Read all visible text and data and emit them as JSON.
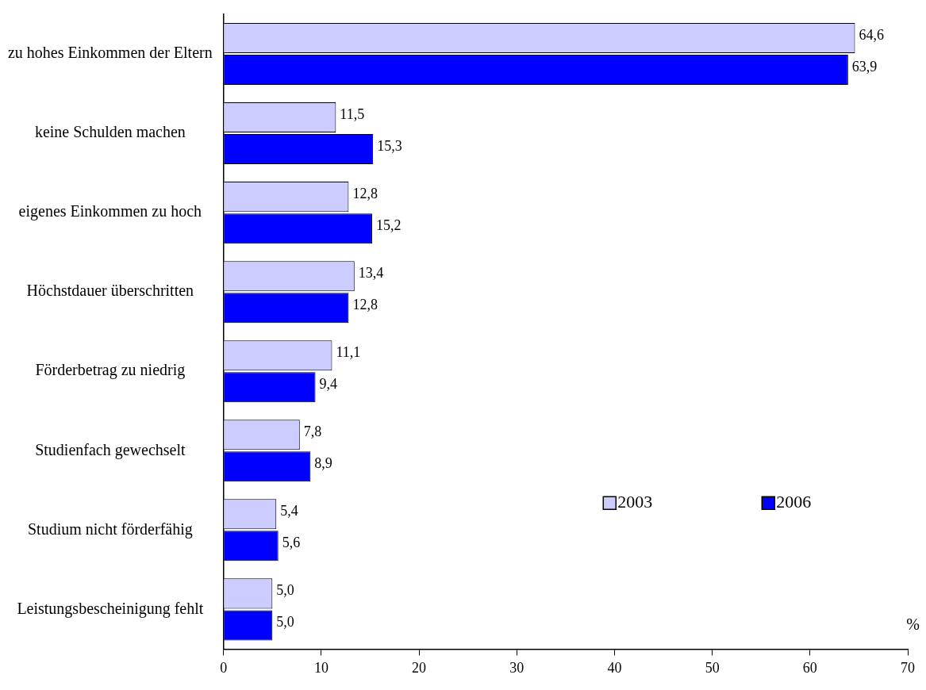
{
  "chart_data": {
    "type": "bar",
    "orientation": "horizontal",
    "xlabel": "%",
    "categories": [
      "zu hohes Einkommen der Eltern",
      "keine Schulden machen",
      "eigenes Einkommen zu hoch",
      "Höchstdauer überschritten",
      "Förderbetrag zu niedrig",
      "Studienfach gewechselt",
      "Studium nicht förderfähig",
      "Leistungsbescheinigung fehlt"
    ],
    "series": [
      {
        "name": "2003",
        "color": "#ccccff",
        "values": [
          64.6,
          11.5,
          12.8,
          13.4,
          11.1,
          7.8,
          5.4,
          5.0
        ],
        "value_labels": [
          "64,6",
          "11,5",
          "12,8",
          "13,4",
          "11,1",
          "7,8",
          "5,4",
          "5,0"
        ]
      },
      {
        "name": "2006",
        "color": "#0000ff",
        "values": [
          63.9,
          15.3,
          15.2,
          12.8,
          9.4,
          8.9,
          5.6,
          5.0
        ],
        "value_labels": [
          "63,9",
          "15,3",
          "15,2",
          "12,8",
          "9,4",
          "8,9",
          "5,6",
          "5,0"
        ]
      }
    ],
    "xlim": [
      0,
      70
    ],
    "xticks": [
      0,
      10,
      20,
      30,
      40,
      50,
      60,
      70
    ],
    "grid": false,
    "legend": "right"
  }
}
